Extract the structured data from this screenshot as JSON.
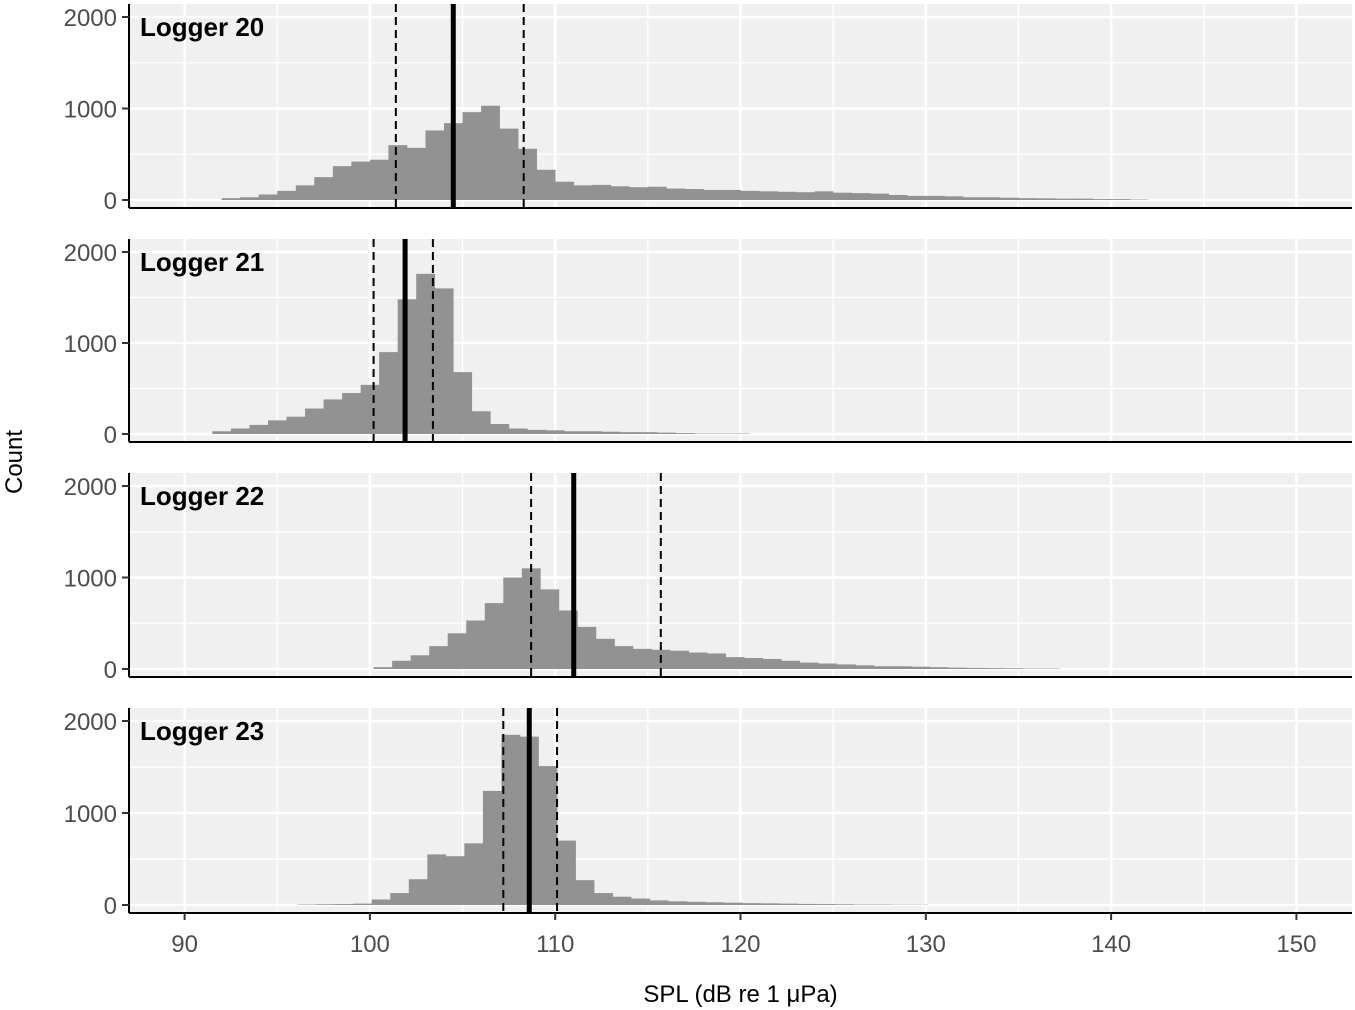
{
  "chart_data": {
    "type": "bar",
    "subtype": "faceted-histogram",
    "xlabel": "SPL (dB re 1 μPa)",
    "ylabel": "Count",
    "xlim": [
      87,
      153
    ],
    "ylim": [
      0,
      2150
    ],
    "x_ticks": [
      90,
      100,
      110,
      120,
      130,
      140,
      150
    ],
    "x_tick_labels": [
      "90",
      "100",
      "110",
      "120",
      "130",
      "140",
      "150"
    ],
    "y_ticks": [
      0,
      1000,
      2000
    ],
    "y_tick_labels": [
      "0",
      "1000",
      "2000"
    ],
    "grid": true,
    "bin_width": 1,
    "colors": {
      "panel_background": "#f0f0f0",
      "grid_major": "#ffffff",
      "bar_fill": "#8c8c8c",
      "line": "#000000"
    },
    "panels": [
      {
        "label": "Logger 20",
        "bin_start": 92,
        "counts": [
          20,
          30,
          60,
          100,
          160,
          250,
          370,
          420,
          440,
          600,
          570,
          760,
          840,
          960,
          1030,
          780,
          560,
          330,
          200,
          160,
          165,
          150,
          140,
          145,
          125,
          120,
          110,
          110,
          100,
          95,
          90,
          85,
          95,
          80,
          75,
          70,
          55,
          45,
          45,
          40,
          30,
          30,
          25,
          20,
          18,
          15,
          15,
          10,
          10,
          5
        ],
        "median": 104.5,
        "lower": 101.4,
        "upper": 108.3
      },
      {
        "label": "Logger 21",
        "bin_start": 91.5,
        "counts": [
          30,
          60,
          100,
          150,
          190,
          280,
          380,
          450,
          540,
          900,
          1480,
          1760,
          1600,
          680,
          250,
          110,
          60,
          45,
          40,
          30,
          30,
          25,
          20,
          20,
          15,
          10,
          5,
          5,
          5
        ],
        "median": 101.9,
        "lower": 100.2,
        "upper": 103.4
      },
      {
        "label": "Logger 22",
        "bin_start": 100.2,
        "counts": [
          20,
          90,
          150,
          250,
          390,
          530,
          720,
          1000,
          1100,
          870,
          640,
          460,
          330,
          250,
          220,
          210,
          200,
          180,
          170,
          130,
          120,
          110,
          90,
          70,
          60,
          50,
          40,
          30,
          30,
          25,
          20,
          15,
          12,
          10,
          8,
          5,
          5
        ],
        "median": 111.0,
        "lower": 108.7,
        "upper": 115.7
      },
      {
        "label": "Logger 23",
        "bin_start": 96.1,
        "counts": [
          5,
          8,
          10,
          15,
          60,
          130,
          280,
          550,
          530,
          670,
          1240,
          1850,
          1830,
          1510,
          700,
          270,
          130,
          90,
          70,
          50,
          40,
          35,
          30,
          25,
          20,
          18,
          15,
          12,
          10,
          8,
          5,
          5,
          3,
          3
        ],
        "median": 108.6,
        "lower": 107.2,
        "upper": 110.1
      }
    ]
  }
}
